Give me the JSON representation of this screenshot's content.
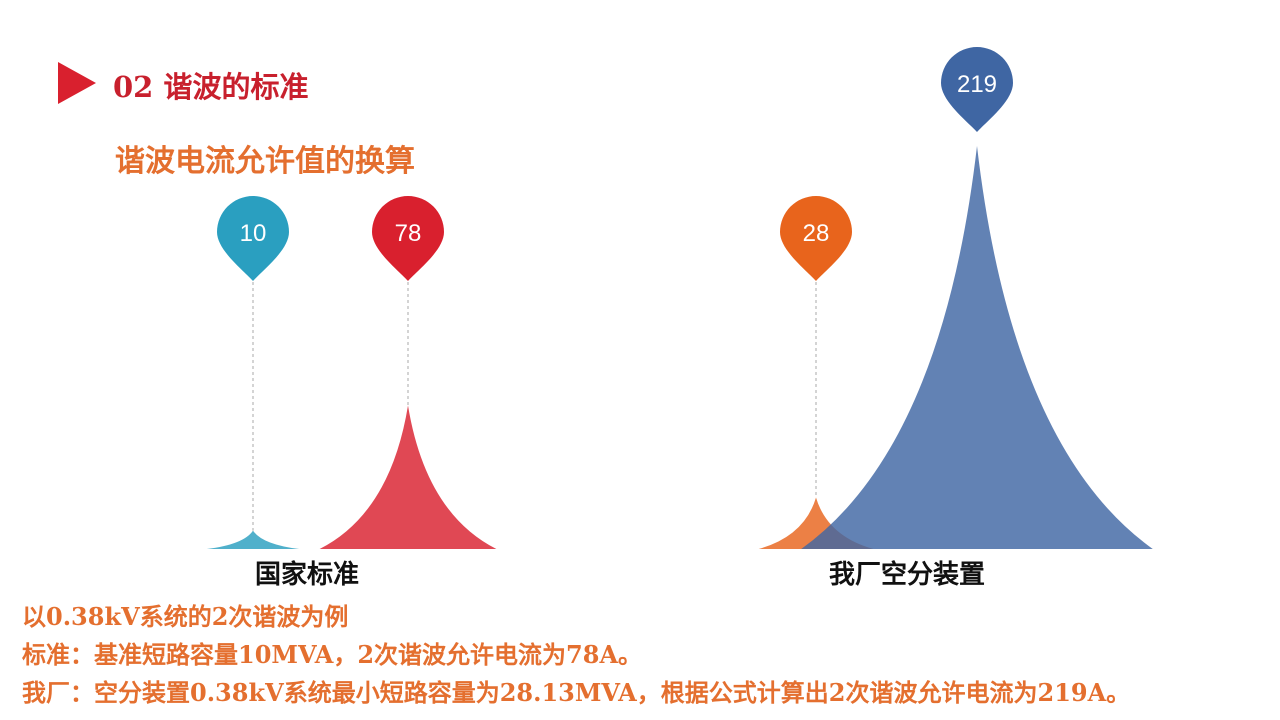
{
  "header": {
    "section_title": "02 谐波的标准",
    "subtitle": "谐波电流允许值的换算",
    "marker_color": "#d9202e"
  },
  "chart_data": [
    {
      "type": "area",
      "category": "国家标准",
      "series": [
        {
          "value": 10,
          "color": "#2a9fc0"
        },
        {
          "value": 78,
          "color": "#d9202e"
        }
      ]
    },
    {
      "type": "area",
      "category": "我厂空分装置",
      "series": [
        {
          "value": 28,
          "color": "#e8641c"
        },
        {
          "value": 219,
          "color": "#3f66a3"
        }
      ]
    }
  ],
  "notes": [
    "以0.38kV系统的2次谐波为例",
    "标准：基准短路容量10MVA，2次谐波允许电流为78A。",
    "我厂：空分装置0.38kV系统最小短路容量为28.13MVA，根据公式计算出2次谐波允许电流为219A。"
  ]
}
